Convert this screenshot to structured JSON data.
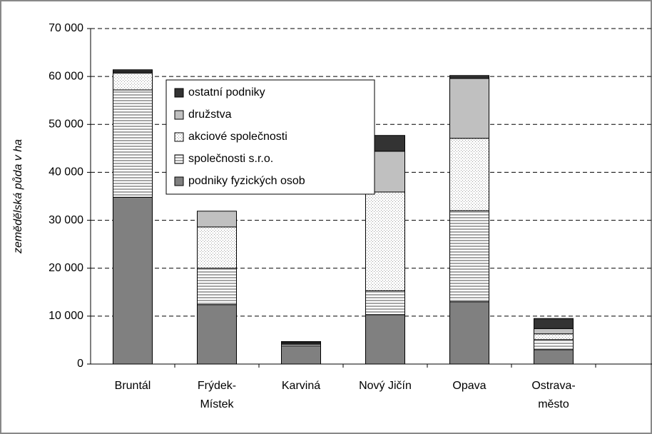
{
  "chart_data": {
    "type": "stacked_bar",
    "y_label": "zemědělská půda v ha",
    "categories": [
      "Bruntál",
      "Frýdek-\nMístek",
      "Karviná",
      "Nový Jičín",
      "Opava",
      "Ostrava-\nměsto"
    ],
    "series": [
      {
        "name": "podniky fyzických osob",
        "color": "#808080",
        "pattern": null,
        "values": [
          34800,
          12400,
          3800,
          10300,
          13000,
          3000
        ]
      },
      {
        "name": "společnosti s.r.o.",
        "color": "#a6a6a6",
        "pattern": "stripes",
        "values": [
          22400,
          7600,
          300,
          5000,
          19000,
          2100
        ]
      },
      {
        "name": "akciové společnosti",
        "color": "#ffffff",
        "pattern": "dots",
        "values": [
          3500,
          8600,
          100,
          20600,
          15100,
          1200
        ]
      },
      {
        "name": "družstva",
        "color": "#c0c0c0",
        "pattern": null,
        "values": [
          200,
          3300,
          200,
          8500,
          12500,
          1100
        ]
      },
      {
        "name": "ostatní podniky",
        "color": "#333333",
        "pattern": null,
        "values": [
          500,
          0,
          300,
          3300,
          600,
          2100
        ]
      }
    ],
    "ylim": [
      0,
      70000
    ],
    "yticks": [
      {
        "value": 0,
        "label": "0"
      },
      {
        "value": 10000,
        "label": "10 000"
      },
      {
        "value": 20000,
        "label": "20 000"
      },
      {
        "value": 30000,
        "label": "30 000"
      },
      {
        "value": 40000,
        "label": "40 000"
      },
      {
        "value": 50000,
        "label": "50 000"
      },
      {
        "value": 60000,
        "label": "60 000"
      },
      {
        "value": 70000,
        "label": "70 000"
      }
    ],
    "grid": true
  }
}
